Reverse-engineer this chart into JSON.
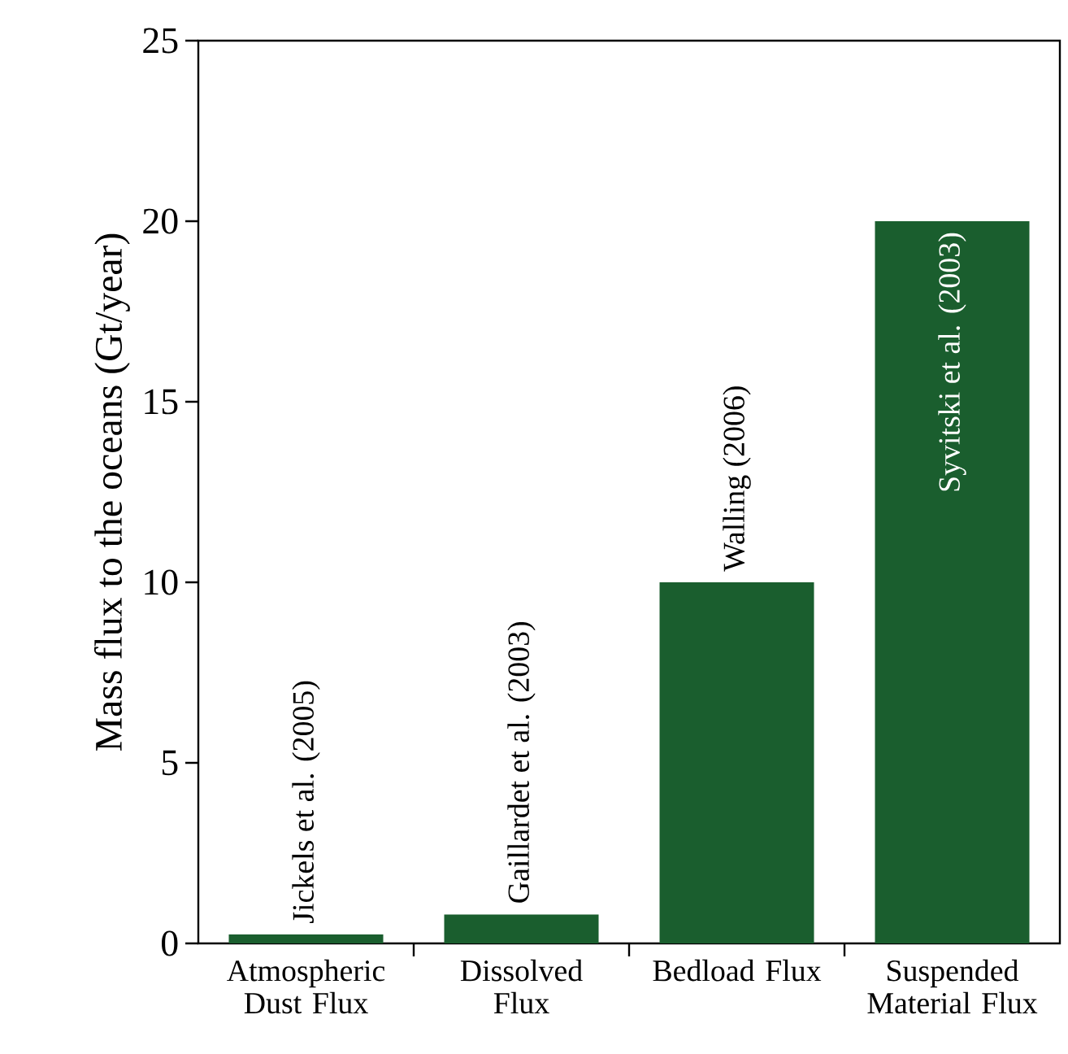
{
  "chart_data": {
    "type": "bar",
    "ylabel": "Mass flux to the oceans (Gt/year)",
    "categories": [
      "Atmospheric Dust Flux",
      "Dissolved Flux",
      "Bedload Flux",
      "Suspended Material Flux"
    ],
    "values": [
      0.25,
      0.8,
      10,
      20
    ],
    "color": "#1a5e2e",
    "ylim": [
      0,
      25
    ],
    "yticks": [
      0,
      5,
      10,
      15,
      20,
      25
    ],
    "annotations": [
      {
        "text": "Jickels et al. (2005)",
        "x": "Atmospheric Dust Flux",
        "y": 0.25
      },
      {
        "text": "Gaillardet et al. (2003)",
        "x": "Dissolved Flux",
        "y": 0.8
      },
      {
        "text": "Walling (2006)",
        "x": "Bedload Flux",
        "y": 10
      },
      {
        "text": "Syvitski et al. (2003)",
        "x": "Suspended Material Flux",
        "y": 20
      }
    ]
  }
}
